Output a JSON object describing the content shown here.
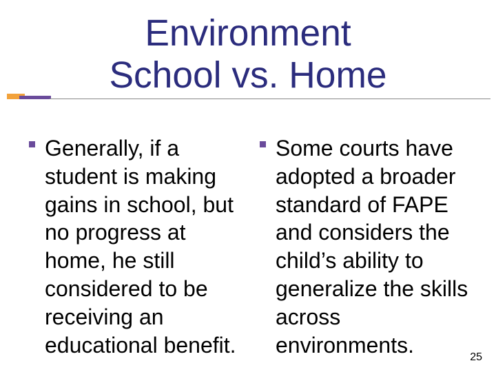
{
  "title": {
    "line1": "Environment",
    "line2": "School vs. Home",
    "color": "#2b2c7d",
    "font_size_pt": 40,
    "font_family": "Verdana"
  },
  "divider": {
    "orange": "#f2a23b",
    "purple": "#6a4b9b",
    "line_color": "#888888"
  },
  "bullets": {
    "marker_color": "#6a4b9b",
    "text_color": "#000000",
    "font_size_pt": 24,
    "font_family": "Verdana",
    "left": "Generally, if a student is making gains in school, but no progress at home, he still considered to be receiving an educational benefit.",
    "right": "Some courts have adopted a broader standard of FAPE and considers the child’s ability to generalize the skills across environments."
  },
  "page_number": {
    "value": "25",
    "color": "#000000",
    "font_size_pt": 12
  },
  "background_color": "#ffffff"
}
